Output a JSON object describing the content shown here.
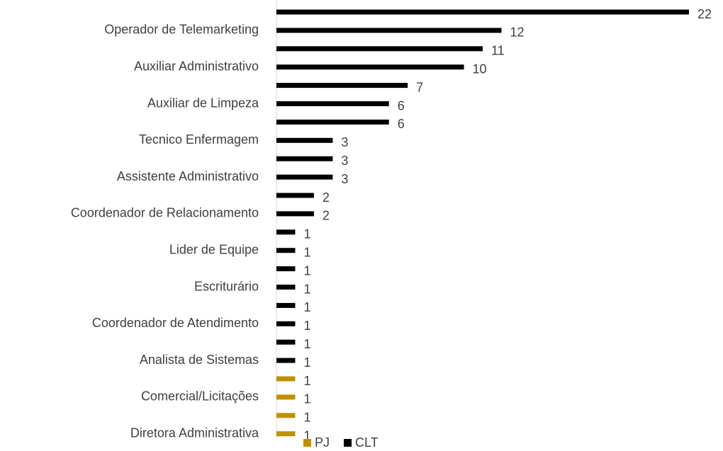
{
  "chart_data": {
    "type": "barh",
    "categories": [
      null,
      "Operador de Telemarketing",
      null,
      "Auxiliar Administrativo",
      null,
      "Auxiliar de Limpeza",
      null,
      "Tecnico Enfermagem",
      null,
      "Assistente Administrativo",
      null,
      "Coordenador de Relacionamento",
      null,
      "Lider de Equipe",
      null,
      "Escriturário",
      null,
      "Coordenador de Atendimento",
      null,
      "Analista de Sistemas",
      null,
      "Comercial/Licitações",
      null,
      "Diretora Administrativa"
    ],
    "series": [
      {
        "name": "PJ",
        "color": "#bf9000",
        "values": [
          null,
          null,
          null,
          null,
          null,
          null,
          null,
          null,
          null,
          null,
          null,
          null,
          null,
          null,
          null,
          null,
          null,
          null,
          null,
          null,
          1,
          1,
          1,
          1
        ]
      },
      {
        "name": "CLT",
        "color": "#000000",
        "values": [
          22,
          12,
          11,
          10,
          7,
          6,
          6,
          3,
          3,
          3,
          2,
          2,
          1,
          1,
          1,
          1,
          1,
          1,
          1,
          1,
          null,
          null,
          null,
          null
        ]
      }
    ],
    "xlim": [
      0,
      22
    ],
    "legend": "bottom"
  }
}
